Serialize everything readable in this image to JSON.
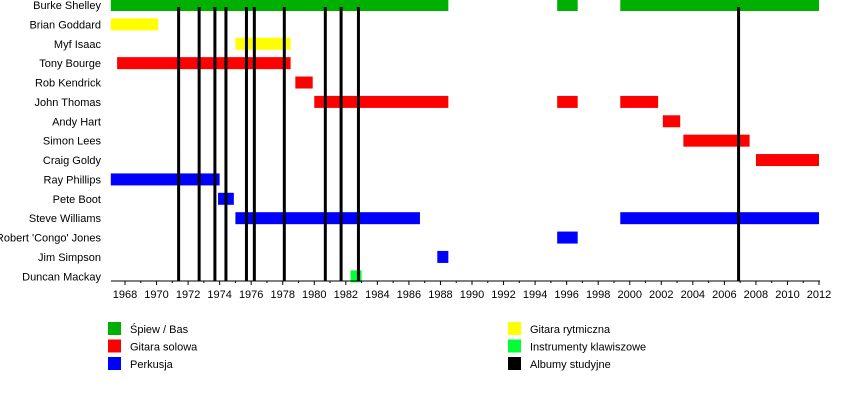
{
  "chart_data": {
    "type": "timeline",
    "title": "",
    "xlim": [
      1967.1,
      2012
    ],
    "x_ticks": [
      1968,
      1970,
      1972,
      1974,
      1976,
      1978,
      1980,
      1982,
      1984,
      1986,
      1988,
      1990,
      1992,
      1994,
      1996,
      1998,
      2000,
      2002,
      2004,
      2006,
      2008,
      2010,
      2012
    ],
    "roles": {
      "vocals_bass": {
        "label": "Śpiew / Bas",
        "color": "#00b000"
      },
      "lead_guitar": {
        "label": "Gitara solowa",
        "color": "#ff0000"
      },
      "drums": {
        "label": "Perkusja",
        "color": "#0000ff"
      },
      "rhythm_guitar": {
        "label": "Gitara rytmiczna",
        "color": "#ffff00"
      },
      "keyboards": {
        "label": "Instrumenty klawiszowe",
        "color": "#00ff33"
      },
      "albums": {
        "label": "Albumy studyjne",
        "color": "#000000"
      }
    },
    "legend_order": [
      "vocals_bass",
      "lead_guitar",
      "drums",
      "rhythm_guitar",
      "keyboards",
      "albums"
    ],
    "members": [
      {
        "name": "Burke Shelley",
        "periods": [
          {
            "role": "vocals_bass",
            "start": 1967.1,
            "end": 1988.5
          },
          {
            "role": "vocals_bass",
            "start": 1995.4,
            "end": 1996.7
          },
          {
            "role": "vocals_bass",
            "start": 1999.4,
            "end": 2012
          }
        ]
      },
      {
        "name": "Brian Goddard",
        "periods": [
          {
            "role": "rhythm_guitar",
            "start": 1967.1,
            "end": 1970.1
          }
        ]
      },
      {
        "name": "Myf Isaac",
        "periods": [
          {
            "role": "rhythm_guitar",
            "start": 1975.0,
            "end": 1978.5
          }
        ]
      },
      {
        "name": "Tony Bourge",
        "periods": [
          {
            "role": "lead_guitar",
            "start": 1967.5,
            "end": 1978.5
          }
        ]
      },
      {
        "name": "Rob Kendrick",
        "periods": [
          {
            "role": "lead_guitar",
            "start": 1978.8,
            "end": 1979.9
          }
        ]
      },
      {
        "name": "John Thomas",
        "periods": [
          {
            "role": "lead_guitar",
            "start": 1980.0,
            "end": 1988.5
          },
          {
            "role": "lead_guitar",
            "start": 1995.4,
            "end": 1996.7
          },
          {
            "role": "lead_guitar",
            "start": 1999.4,
            "end": 2001.8
          }
        ]
      },
      {
        "name": "Andy Hart",
        "periods": [
          {
            "role": "lead_guitar",
            "start": 2002.1,
            "end": 2003.2
          }
        ]
      },
      {
        "name": "Simon Lees",
        "periods": [
          {
            "role": "lead_guitar",
            "start": 2003.4,
            "end": 2007.6
          }
        ]
      },
      {
        "name": "Craig Goldy",
        "periods": [
          {
            "role": "lead_guitar",
            "start": 2008.0,
            "end": 2012
          }
        ]
      },
      {
        "name": "Ray Phillips",
        "periods": [
          {
            "role": "drums",
            "start": 1967.1,
            "end": 1974.0
          }
        ]
      },
      {
        "name": "Pete Boot",
        "periods": [
          {
            "role": "drums",
            "start": 1973.9,
            "end": 1974.9
          }
        ]
      },
      {
        "name": "Steve Williams",
        "periods": [
          {
            "role": "drums",
            "start": 1975.0,
            "end": 1986.7
          },
          {
            "role": "drums",
            "start": 1999.4,
            "end": 2012
          }
        ]
      },
      {
        "name": "Robert 'Congo' Jones",
        "periods": [
          {
            "role": "drums",
            "start": 1995.4,
            "end": 1996.7
          }
        ]
      },
      {
        "name": "Jim Simpson",
        "periods": [
          {
            "role": "drums",
            "start": 1987.8,
            "end": 1988.5
          }
        ]
      },
      {
        "name": "Duncan Mackay",
        "periods": [
          {
            "role": "keyboards",
            "start": 1982.3,
            "end": 1983.0
          }
        ]
      }
    ],
    "albums": [
      1971.4,
      1972.7,
      1973.7,
      1974.4,
      1975.7,
      1976.2,
      1978.1,
      1980.7,
      1981.7,
      1982.8,
      2006.9
    ]
  }
}
